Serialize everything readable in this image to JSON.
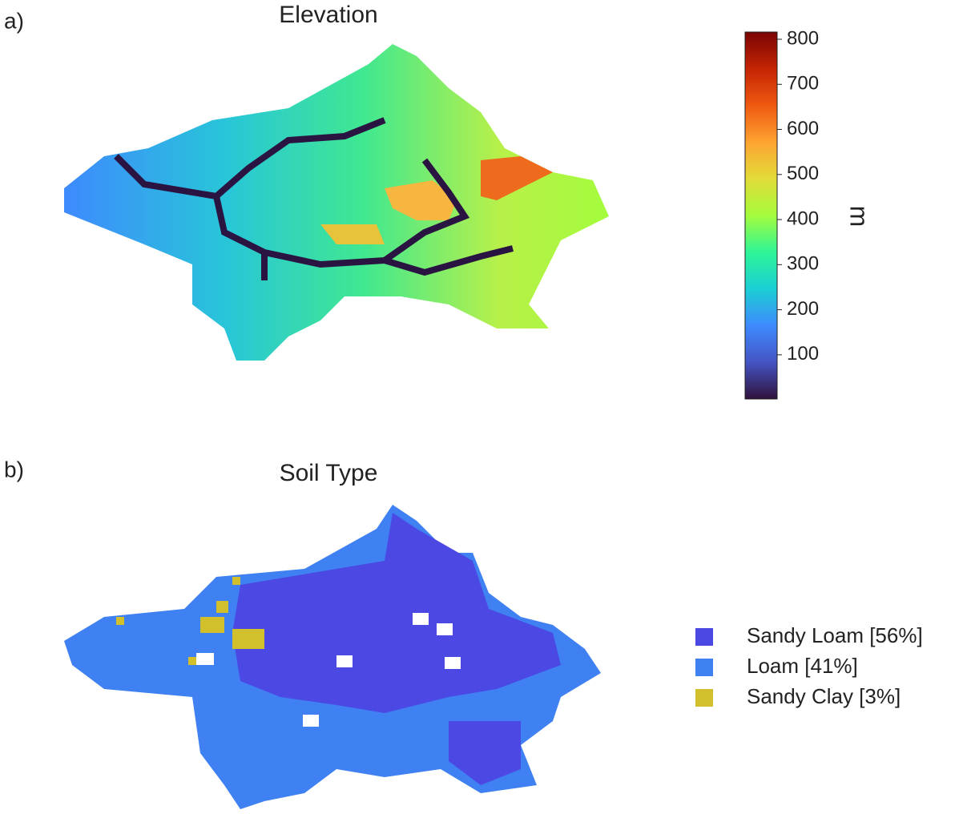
{
  "chart_data": [
    {
      "type": "colormap",
      "panel_label": "a)",
      "title": "Elevation",
      "colorbar": {
        "label": "m",
        "lim": [
          2,
          816
        ],
        "ticks": [
          100,
          200,
          300,
          400,
          500,
          600,
          700,
          800
        ]
      }
    },
    {
      "type": "categorical-map",
      "panel_label": "b)",
      "title": "Soil Type",
      "series": [
        {
          "name": "Sandy Loam [56%]",
          "color": "#4b48e3"
        },
        {
          "name": "Loam [41%]",
          "color": "#3f80f2"
        },
        {
          "name": "Sandy Clay [3%]",
          "color": "#d2bf2c"
        }
      ]
    }
  ]
}
